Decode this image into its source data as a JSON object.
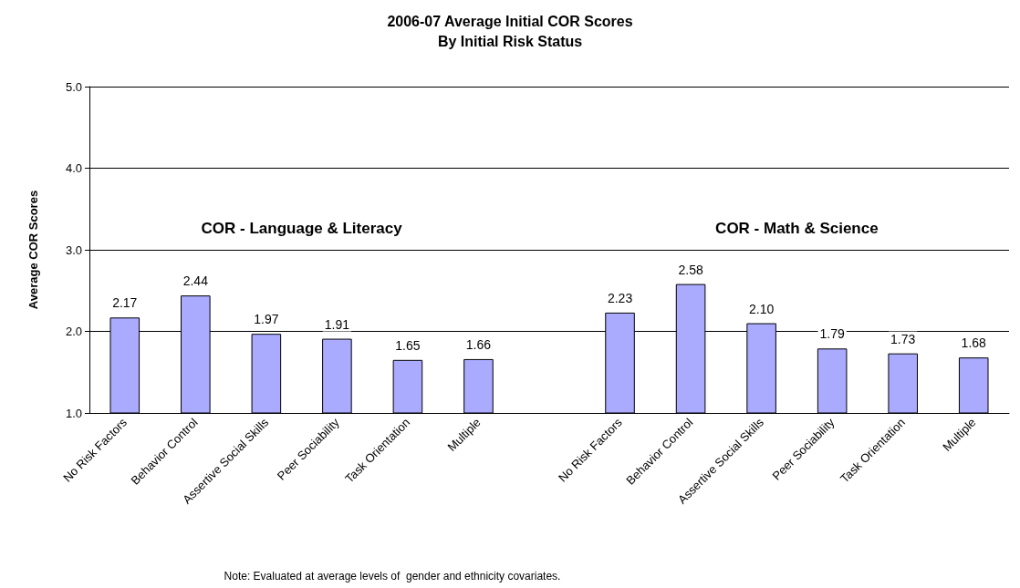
{
  "chart_data": {
    "type": "bar",
    "title": "2006-07 Average Initial COR Scores",
    "subtitle": "By Initial Risk Status",
    "ylabel": "Average COR Scores",
    "categories": [
      "No Risk Factors",
      "Behavior Control",
      "Assertive Social Skills",
      "Peer Sociability",
      "Task Orientation",
      "Multiple",
      null,
      "No Risk Factors",
      "Behavior Control",
      "Assertive Social Skills",
      "Peer Sociability",
      "Task Orientation",
      "Multiple"
    ],
    "values": [
      2.17,
      2.44,
      1.97,
      1.91,
      1.65,
      1.66,
      null,
      2.23,
      2.58,
      2.1,
      1.79,
      1.73,
      1.68
    ],
    "value_labels": [
      "2.17",
      "2.44",
      "1.97",
      "1.91",
      "1.65",
      "1.66",
      null,
      "2.23",
      "2.58",
      "2.10",
      "1.79",
      "1.73",
      "1.68"
    ],
    "color": "#aaaaff",
    "ylim": [
      1,
      5
    ],
    "yticks": [
      {
        "value": 1,
        "label": "1.0"
      },
      {
        "value": 2,
        "label": "2.0"
      },
      {
        "value": 3,
        "label": "3.0"
      },
      {
        "value": 4,
        "label": "4.0"
      },
      {
        "value": 5,
        "label": "5.0"
      }
    ],
    "grid": "y",
    "annotations": [
      "COR - Language & Literacy",
      "COR - Math & Science",
      "Note: Evaluated at average levels of  gender and ethnicity covariates."
    ]
  }
}
